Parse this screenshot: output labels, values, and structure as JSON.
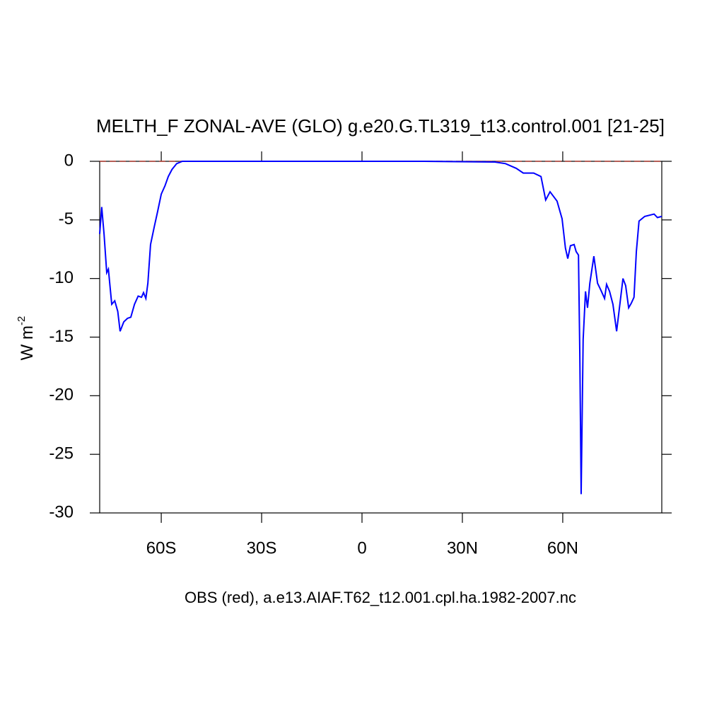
{
  "chart_data": {
    "type": "line",
    "title": "MELTH_F ZONAL-AVE (GLO) g.e20.G.TL319_t13.control.001 [21-25]",
    "subtitle": "OBS (red), a.e13.AIAF.T62_t12.001.cpl.ha.1982-2007.nc",
    "ylabel": "W m",
    "ylabel_superscript": "-2",
    "xlim": [
      -78.4,
      89.6
    ],
    "ylim": [
      -30,
      0
    ],
    "xticks": [
      {
        "value": -60,
        "label": "60S"
      },
      {
        "value": -30,
        "label": "30S"
      },
      0,
      {
        "value": 30,
        "label": "30N"
      },
      {
        "value": 60,
        "label": "60N"
      }
    ],
    "yticks": [
      0,
      -5,
      -10,
      -15,
      -20,
      -25,
      -30
    ],
    "series": [
      {
        "color": "#0000ff",
        "dashed": false,
        "x": [
          -78.4,
          -77.8,
          -77.1,
          -76.3,
          -75.8,
          -75.2,
          -74.8,
          -73.9,
          -73.0,
          -72.3,
          -71.2,
          -70.1,
          -69.1,
          -68.0,
          -66.9,
          -65.9,
          -65.3,
          -64.6,
          -64.0,
          -63.2,
          -62.1,
          -61.1,
          -60.0,
          -58.9,
          -57.9,
          -56.8,
          -55.4,
          -53.7,
          18.6,
          39.7,
          42.9,
          46.1,
          48.2,
          51.3,
          53.5,
          54.9,
          56.2,
          58.3,
          59.8,
          60.8,
          61.5,
          62.3,
          63.4,
          64.0,
          64.7,
          65.1,
          65.5,
          66.1,
          66.8,
          67.4,
          68.1,
          69.3,
          70.4,
          71.4,
          72.5,
          73.1,
          74.0,
          75.0,
          76.1,
          77.2,
          78.0,
          78.8,
          79.7,
          80.5,
          81.3,
          82.0,
          82.8,
          84.5,
          87.3,
          88.3,
          89.6
        ],
        "values": [
          -6.2,
          -3.9,
          -6.2,
          -9.5,
          -9.2,
          -11.0,
          -12.2,
          -11.9,
          -12.8,
          -14.5,
          -13.7,
          -13.4,
          -13.3,
          -12.2,
          -11.5,
          -11.6,
          -11.2,
          -11.7,
          -10.4,
          -7.1,
          -5.6,
          -4.3,
          -2.8,
          -2.1,
          -1.3,
          -0.7,
          -0.2,
          0,
          0,
          -0.06,
          -0.2,
          -0.6,
          -1.0,
          -1.0,
          -1.3,
          -3.3,
          -2.6,
          -3.4,
          -4.9,
          -7.4,
          -8.3,
          -7.2,
          -7.1,
          -7.7,
          -8.0,
          -16.4,
          -28.4,
          -15.2,
          -11.1,
          -12.5,
          -10.4,
          -8.1,
          -10.4,
          -11.0,
          -11.7,
          -10.5,
          -11.1,
          -12.2,
          -14.5,
          -11.9,
          -10.0,
          -10.6,
          -12.5,
          -12.1,
          -11.6,
          -7.7,
          -5.1,
          -4.7,
          -4.5,
          -4.8,
          -4.7
        ]
      },
      {
        "color": "#b03a2e",
        "dashed": true,
        "x": [
          -78.4,
          89.6
        ],
        "values": [
          0,
          0
        ]
      }
    ]
  }
}
